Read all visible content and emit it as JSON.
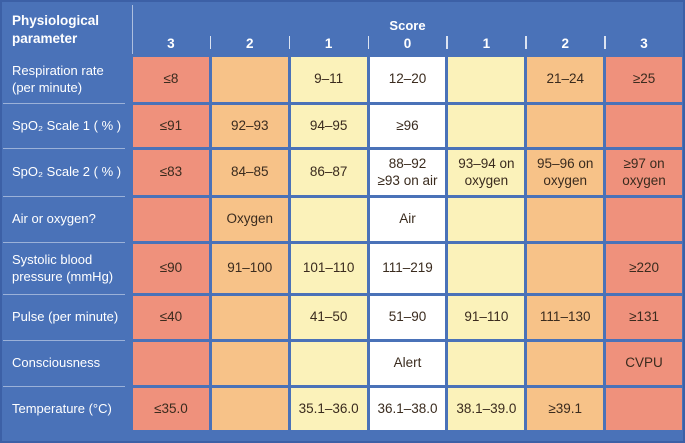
{
  "chart_data": {
    "type": "table",
    "header": {
      "parameter_label": "Physiological\nparameter",
      "score_label": "Score",
      "score_values": [
        "3",
        "2",
        "1",
        "0",
        "1",
        "2",
        "3"
      ]
    },
    "column_scores": [
      3,
      2,
      1,
      0,
      1,
      2,
      3
    ],
    "rows": [
      {
        "parameter": "Respiration rate\n(per minute)",
        "cells": [
          "≤8",
          "",
          "9–11",
          "12–20",
          "",
          "21–24",
          "≥25"
        ]
      },
      {
        "parameter": "SpO₂ Scale 1 ( % )",
        "cells": [
          "≤91",
          "92–93",
          "94–95",
          "≥96",
          "",
          "",
          ""
        ]
      },
      {
        "parameter": "SpO₂ Scale 2 ( % )",
        "cells": [
          "≤83",
          "84–85",
          "86–87",
          "88–92\n≥93 on air",
          "93–94 on\noxygen",
          "95–96 on\noxygen",
          "≥97 on\noxygen"
        ]
      },
      {
        "parameter": "Air or oxygen?",
        "cells": [
          "",
          "Oxygen",
          "",
          "Air",
          "",
          "",
          ""
        ]
      },
      {
        "parameter": "Systolic blood\npressure (mmHg)",
        "cells": [
          "≤90",
          "91–100",
          "101–110",
          "111–219",
          "",
          "",
          "≥220"
        ]
      },
      {
        "parameter": "Pulse (per minute)",
        "cells": [
          "≤40",
          "",
          "41–50",
          "51–90",
          "91–110",
          "111–130",
          "≥131"
        ]
      },
      {
        "parameter": "Consciousness",
        "cells": [
          "",
          "",
          "",
          "Alert",
          "",
          "",
          "CVPU"
        ]
      },
      {
        "parameter": "Temperature (°C)",
        "cells": [
          "≤35.0",
          "",
          "35.1–36.0",
          "36.1–38.0",
          "38.1–39.0",
          "≥39.1",
          ""
        ]
      }
    ],
    "colors": {
      "header_blue": "#4a72b8",
      "border_blue": "#3c60a6",
      "score_3": "#ef917c",
      "score_2": "#f7c288",
      "score_1": "#fbf2ba",
      "score_0": "#ffffff",
      "cell_text": "#3a2b1e",
      "header_text": "#ffffff"
    }
  }
}
